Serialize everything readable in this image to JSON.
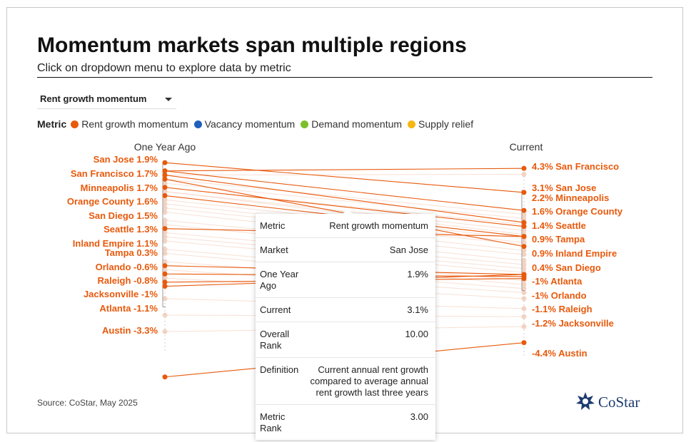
{
  "header": {
    "title": "Momentum markets span multiple regions",
    "subtitle": "Click on dropdown menu to explore data by metric"
  },
  "dropdown": {
    "selected": "Rent growth momentum"
  },
  "legend": {
    "title": "Metric",
    "items": [
      {
        "label": "Rent growth momentum",
        "color": "#e8590c"
      },
      {
        "label": "Vacancy momentum",
        "color": "#1f5fbf"
      },
      {
        "label": "Demand momentum",
        "color": "#7bbf2a"
      },
      {
        "label": "Supply relief",
        "color": "#f5b70f"
      }
    ]
  },
  "colors": {
    "accent": "#e8590c",
    "faded": "#f6d3c2",
    "axis": "#999999"
  },
  "chart_data": {
    "type": "slope",
    "title": "Momentum markets span multiple regions",
    "left_label": "One Year Ago",
    "right_label": "Current",
    "unit": "%",
    "ylim": [
      -4.6,
      4.4
    ],
    "highlighted": [
      {
        "market": "San Francisco",
        "before": 1.7,
        "after": 4.3,
        "before_label": "San Francisco 1.7%",
        "after_label": "4.3% San Francisco"
      },
      {
        "market": "San Jose",
        "before": 1.9,
        "after": 3.1,
        "before_label": "San Jose 1.9%",
        "after_label": "3.1% San Jose"
      },
      {
        "market": "Minneapolis",
        "before": 1.7,
        "after": 2.2,
        "before_label": "Minneapolis 1.7%",
        "after_label": "2.2% Minneapolis"
      },
      {
        "market": "Orange County",
        "before": 1.6,
        "after": 1.6,
        "before_label": "Orange County 1.6%",
        "after_label": "1.6% Orange County"
      },
      {
        "market": "San Diego",
        "before": 1.5,
        "after": 0.4,
        "before_label": "San Diego 1.5%",
        "after_label": "0.4% San Diego"
      },
      {
        "market": "Seattle",
        "before": 1.3,
        "after": 1.4,
        "before_label": "Seattle 1.3%",
        "after_label": "1.4% Seattle"
      },
      {
        "market": "Inland Empire",
        "before": 1.1,
        "after": 0.9,
        "before_label": "Inland Empire 1.1%",
        "after_label": "0.9% Inland Empire"
      },
      {
        "market": "Tampa",
        "before": 0.3,
        "after": 0.9,
        "before_label": "Tampa 0.3%",
        "after_label": "0.9% Tampa"
      },
      {
        "market": "Orlando",
        "before": -0.6,
        "after": -1.0,
        "before_label": "Orlando -0.6%",
        "after_label": "-1% Orlando"
      },
      {
        "market": "Raleigh",
        "before": -0.8,
        "after": -1.1,
        "before_label": "Raleigh -0.8%",
        "after_label": "-1.1% Raleigh"
      },
      {
        "market": "Jacksonville",
        "before": -1.0,
        "after": -1.2,
        "before_label": "Jacksonville -1%",
        "after_label": "-1.2% Jacksonville"
      },
      {
        "market": "Atlanta",
        "before": -1.1,
        "after": -1.0,
        "before_label": "Atlanta -1.1%",
        "after_label": "-1% Atlanta"
      },
      {
        "market": "Austin",
        "before": -3.3,
        "after": -4.4,
        "before_label": "Austin -3.3%",
        "after_label": "-4.4% Austin"
      }
    ],
    "background_before": [
      1.6,
      1.5,
      1.4,
      1.3,
      1.2,
      1.2,
      1.0,
      0.9,
      0.8,
      0.7,
      0.5,
      0.4,
      0.2,
      0.1,
      0.0,
      -0.2,
      -0.3,
      -0.5,
      -0.7,
      -0.9,
      -1.4,
      -1.8,
      -2.2
    ],
    "background_after": [
      4.0,
      2.0,
      1.8,
      1.5,
      1.2,
      1.0,
      0.8,
      0.6,
      0.5,
      0.2,
      0.0,
      -0.3,
      -0.5,
      -0.7,
      -0.9,
      -1.3,
      -1.5,
      -1.7,
      -1.9,
      -2.2,
      -2.7,
      -3.1,
      -3.6
    ]
  },
  "tooltip": {
    "rows": [
      {
        "key": "Metric",
        "value": "Rent growth momentum"
      },
      {
        "key": "Market",
        "value": "San Jose"
      },
      {
        "key": "One Year Ago",
        "value": "1.9%"
      },
      {
        "key": "Current",
        "value": "3.1%"
      },
      {
        "key": "Overall Rank",
        "value": "10.00"
      },
      {
        "key": "Definition",
        "value": "Current annual rent growth compared to average annual rent growth last three years"
      },
      {
        "key": "Metric Rank",
        "value": "3.00"
      }
    ]
  },
  "footer": {
    "source": "Source: CoStar, May 2025",
    "logo_text": "CoStar"
  }
}
